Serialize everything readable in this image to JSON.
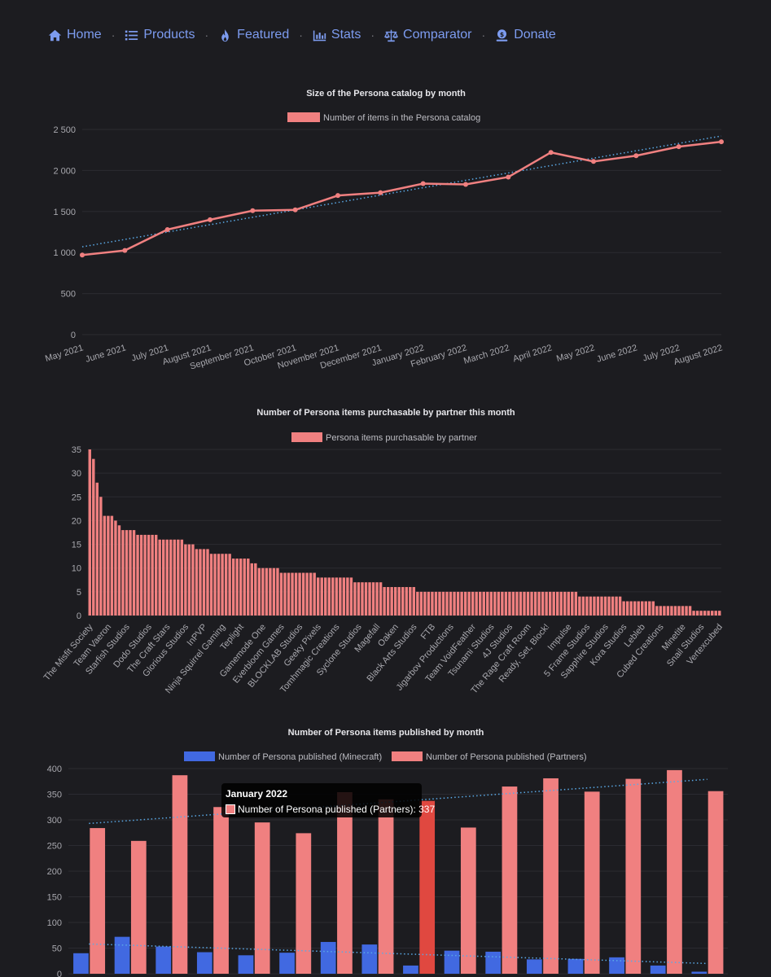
{
  "nav": {
    "items": [
      {
        "label": "Home",
        "icon": "home-icon"
      },
      {
        "label": "Products",
        "icon": "list-icon"
      },
      {
        "label": "Featured",
        "icon": "fire-icon"
      },
      {
        "label": "Stats",
        "icon": "bar-chart-icon"
      },
      {
        "label": "Comparator",
        "icon": "scale-icon"
      },
      {
        "label": "Donate",
        "icon": "donate-icon"
      }
    ],
    "separator": "·"
  },
  "colors": {
    "background": "#1c1c20",
    "accent": "#7d9cf0",
    "salmon": "#f08080",
    "blue": "#4169e1",
    "highlight_red": "#e04840",
    "trend": "#5aa9e6",
    "text": "#cfcfd4",
    "grid": "#2b2b31"
  },
  "chart_data": [
    {
      "type": "line",
      "title": "Size of the Persona catalog by month",
      "legend": [
        "Number of items in the Persona catalog"
      ],
      "categories": [
        "May 2021",
        "June 2021",
        "July 2021",
        "August 2021",
        "September 2021",
        "October 2021",
        "November 2021",
        "December 2021",
        "January 2022",
        "February 2022",
        "March 2022",
        "April 2022",
        "May 2022",
        "June 2022",
        "July 2022",
        "August 2022"
      ],
      "values": [
        970,
        1025,
        1280,
        1400,
        1510,
        1520,
        1695,
        1730,
        1840,
        1830,
        1920,
        2220,
        2110,
        2180,
        2290,
        2350
      ],
      "trend": [
        1070,
        2420
      ],
      "ylim": [
        0,
        2500
      ],
      "yticks": [
        "0",
        "500",
        "1 000",
        "1 500",
        "2 000",
        "2 500"
      ],
      "ytick_values": [
        0,
        500,
        1000,
        1500,
        2000,
        2500
      ]
    },
    {
      "type": "bar",
      "title": "Number of Persona items purchasable by partner this month",
      "legend": [
        "Persona items purchasable by partner"
      ],
      "values": [
        35,
        33,
        28,
        25,
        21,
        21,
        21,
        20,
        19,
        18,
        18,
        18,
        18,
        17,
        17,
        17,
        17,
        17,
        17,
        16,
        16,
        16,
        16,
        16,
        16,
        16,
        15,
        15,
        15,
        14,
        14,
        14,
        14,
        13,
        13,
        13,
        13,
        13,
        13,
        12,
        12,
        12,
        12,
        12,
        11,
        11,
        10,
        10,
        10,
        10,
        10,
        10,
        9,
        9,
        9,
        9,
        9,
        9,
        9,
        9,
        9,
        9,
        8,
        8,
        8,
        8,
        8,
        8,
        8,
        8,
        8,
        8,
        7,
        7,
        7,
        7,
        7,
        7,
        7,
        7,
        6,
        6,
        6,
        6,
        6,
        6,
        6,
        6,
        6,
        5,
        5,
        5,
        5,
        5,
        5,
        5,
        5,
        5,
        5,
        5,
        5,
        5,
        5,
        5,
        5,
        5,
        5,
        5,
        5,
        5,
        5,
        5,
        5,
        5,
        5,
        5,
        5,
        5,
        5,
        5,
        5,
        5,
        5,
        5,
        5,
        5,
        5,
        5,
        5,
        5,
        5,
        5,
        5,
        4,
        4,
        4,
        4,
        4,
        4,
        4,
        4,
        4,
        4,
        4,
        4,
        3,
        3,
        3,
        3,
        3,
        3,
        3,
        3,
        3,
        2,
        2,
        2,
        2,
        2,
        2,
        2,
        2,
        2,
        2,
        1,
        1,
        1,
        1,
        1,
        1,
        1,
        1
      ],
      "tick_labels": [
        "The Misfit Society",
        "Team Vaeron",
        "Starfish Studios",
        "Dodo Studios",
        "The Craft Stars",
        "Glorious Studios",
        "InPVP",
        "Ninja Squirrel Gaming",
        "Teplight",
        "Gamemode One",
        "Everbloom Games",
        "BLOCKLAB Studios",
        "Geeky Pixels",
        "Tomhmagic Creations",
        "Syclone Studios",
        "Magefall",
        "Oaken",
        "Black Arts Studios",
        "FTB",
        "Jigarbov Productions",
        "Team VoidFeather",
        "Tsunami Studios",
        "4J Studios",
        "The Rage Craft Room",
        "Ready, Set, Block!",
        "Impulse",
        "5 Frame Studios",
        "Sapphire Studios",
        "Kora Studios",
        "Lebleb",
        "Cubed Creations",
        "Minetite",
        "Snail Studios",
        "Vertexcubed"
      ],
      "ylim": [
        0,
        35
      ],
      "yticks": [
        "0",
        "5",
        "10",
        "15",
        "20",
        "25",
        "30",
        "35"
      ],
      "ytick_values": [
        0,
        5,
        10,
        15,
        20,
        25,
        30,
        35
      ]
    },
    {
      "type": "bar",
      "title": "Number of Persona items published by month",
      "legend": [
        "Number of Persona published (Minecraft)",
        "Number of Persona published (Partners)"
      ],
      "series": [
        {
          "name": "Number of Persona published (Minecraft)",
          "values": [
            40,
            72,
            53,
            42,
            36,
            41,
            62,
            57,
            16,
            45,
            43,
            28,
            29,
            32,
            16,
            4
          ]
        },
        {
          "name": "Number of Persona published (Partners)",
          "values": [
            284,
            259,
            387,
            325,
            295,
            274,
            354,
            340,
            337,
            285,
            365,
            381,
            355,
            380,
            397,
            356
          ]
        }
      ],
      "trend_minecraft": [
        58,
        20
      ],
      "trend_partners": [
        293,
        379
      ],
      "highlight_index": 8,
      "ylim": [
        0,
        400
      ],
      "yticks": [
        "0",
        "50",
        "100",
        "150",
        "200",
        "250",
        "300",
        "350",
        "400"
      ],
      "ytick_values": [
        0,
        50,
        100,
        150,
        200,
        250,
        300,
        350,
        400
      ]
    }
  ],
  "tooltip": {
    "title": "January 2022",
    "text": "Number of Persona published (Partners): 337"
  }
}
